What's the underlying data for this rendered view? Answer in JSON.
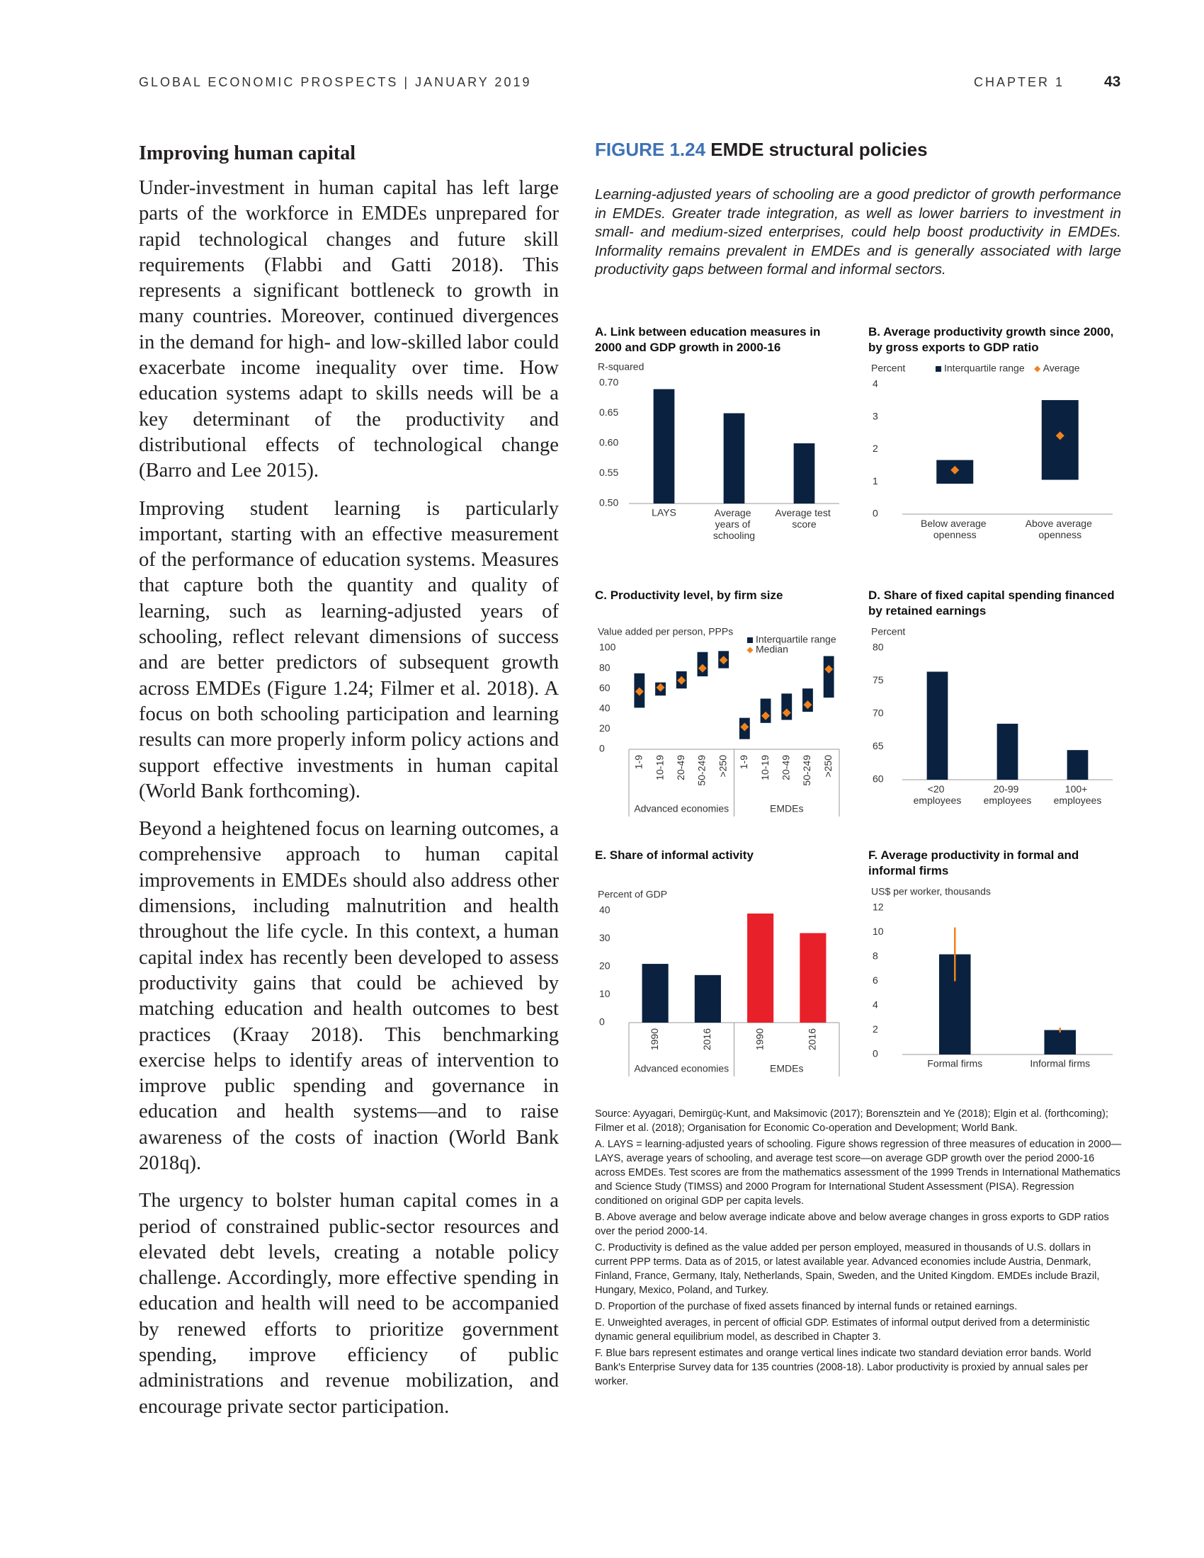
{
  "header": {
    "left": "GLOBAL ECONOMIC PROSPECTS | JANUARY 2019",
    "chapter": "CHAPTER 1",
    "page": "43"
  },
  "body": {
    "heading": "Improving human capital",
    "paragraphs": [
      "Under-investment in human capital has left large parts of the workforce in EMDEs unprepared for rapid technological changes and future skill requirements (Flabbi and Gatti 2018). This represents a significant bottleneck to growth in many countries. Moreover, continued divergences in the demand for high- and low-skilled labor could exacerbate income inequality over time. How education systems adapt to skills needs will be a key determinant of the productivity and distributional effects of technological change (Barro and Lee 2015).",
      "Improving student learning is particularly important, starting with an effective measurement of the performance of education systems. Measures that capture both the quantity and quality of learning, such as learning-adjusted years of schooling, reflect relevant dimensions of success and are better predictors of subsequent growth across EMDEs (Figure 1.24; Filmer et al. 2018). A focus on both schooling participation and learning results can more properly inform policy actions and support effective investments in human capital (World Bank forthcoming).",
      "Beyond a heightened focus on learning outcomes, a comprehensive approach to human capital improvements in EMDEs should also address other dimensions, including malnutrition and health throughout the life cycle. In this context, a human capital index has recently been developed to assess productivity gains that could be achieved by matching education and health outcomes to best practices (Kraay 2018). This benchmarking exercise helps to identify areas of intervention to improve public spending and governance in education and health systems—and to raise awareness of the costs of inaction (World Bank 2018q).",
      "The urgency to bolster human capital comes in a period of constrained public-sector resources and elevated debt levels, creating a notable policy challenge. Accordingly, more effective spending in education and health will need to be accompanied by renewed efforts to prioritize government spending, improve efficiency of public administrations and revenue mobilization, and encourage private sector participation."
    ]
  },
  "figure": {
    "label": "FIGURE 1.24",
    "title": "EMDE structural policies",
    "subtitle": "Learning-adjusted years of schooling are a good predictor of growth performance in EMDEs. Greater trade integration, as well as lower barriers to investment in small- and medium-sized enterprises, could help boost productivity in EMDEs. Informality remains prevalent in EMDEs and is generally associated with large productivity gaps between formal and informal sectors."
  },
  "chart_data": [
    {
      "type": "bar",
      "title": "A. Link between education measures in 2000 and GDP growth in 2000-16",
      "y_label": "R-squared",
      "categories": [
        "LAYS",
        "Average years of schooling",
        "Average test score"
      ],
      "values": [
        0.69,
        0.65,
        0.6
      ],
      "color": "#0a2240",
      "ylim": [
        0.5,
        0.7
      ],
      "yticks": [
        {
          "value": 0.5,
          "label": "0.50"
        },
        {
          "value": 0.55,
          "label": "0.55"
        },
        {
          "value": 0.6,
          "label": "0.60"
        },
        {
          "value": 0.65,
          "label": "0.65"
        },
        {
          "value": 0.7,
          "label": "0.70"
        }
      ]
    },
    {
      "type": "range",
      "title": "B. Average productivity growth since 2000, by gross exports to GDP ratio",
      "y_label": "Percent",
      "categories": [
        "Below average openness",
        "Above average openness"
      ],
      "series": [
        {
          "name": "Interquartile range",
          "color": "#0a2240",
          "low": [
            0.94,
            1.06
          ],
          "high": [
            1.67,
            3.52
          ]
        },
        {
          "name": "Average",
          "color": "#f0821e",
          "values": [
            1.36,
            2.42
          ]
        }
      ],
      "ylim": [
        0,
        4
      ],
      "yticks": [
        0,
        1,
        2,
        3,
        4
      ],
      "legend": "top-right"
    },
    {
      "type": "range",
      "title": "C. Productivity level, by firm size",
      "y_label": "Value added per person, PPPs",
      "categories": [
        "1-9",
        "10-19",
        "20-49",
        "50-249",
        ">250",
        "1-9",
        "10-19",
        "20-49",
        "50-249",
        ">250"
      ],
      "groups": [
        "Advanced economies",
        "EMDEs"
      ],
      "series": [
        {
          "name": "Interquartile range",
          "color": "#0a2240",
          "low": [
            41,
            53,
            60,
            72,
            80,
            10,
            26,
            29,
            37,
            51
          ],
          "high": [
            75,
            66,
            77,
            96,
            97,
            31,
            50,
            55,
            60,
            92
          ]
        },
        {
          "name": "Median",
          "color": "#f0821e",
          "values": [
            57,
            61,
            68,
            80,
            88,
            22,
            33,
            36,
            44,
            79
          ]
        }
      ],
      "ylim": [
        0,
        100
      ],
      "yticks": [
        0,
        20,
        40,
        60,
        80,
        100
      ],
      "legend": "top-right"
    },
    {
      "type": "bar",
      "title": "D. Share of fixed capital spending financed by retained earnings",
      "y_label": "Percent",
      "categories": [
        "<20 employees",
        "20-99 employees",
        "100+ employees"
      ],
      "values": [
        76.4,
        68.5,
        64.5
      ],
      "color": "#0a2240",
      "ylim": [
        60,
        80
      ],
      "yticks": [
        60,
        65,
        70,
        75,
        80
      ]
    },
    {
      "type": "bar",
      "title": "E. Share of informal activity",
      "y_label": "Percent of GDP",
      "categories": [
        "1990",
        "2016",
        "1990",
        "2016"
      ],
      "groups": [
        "Advanced economies",
        "EMDEs"
      ],
      "values": [
        21,
        17,
        39,
        32
      ],
      "colors": [
        "#0a2240",
        "#0a2240",
        "#e8202a",
        "#e8202a"
      ],
      "ylim": [
        0,
        40
      ],
      "yticks": [
        0,
        10,
        20,
        30,
        40
      ]
    },
    {
      "type": "bar",
      "title": "F. Average productivity in formal and informal firms",
      "y_label": "US$ per worker, thousands",
      "categories": [
        "Formal firms",
        "Informal firms"
      ],
      "values": [
        8.2,
        2.0
      ],
      "color": "#0a2240",
      "error_low": [
        6.0,
        1.8
      ],
      "error_high": [
        10.4,
        2.2
      ],
      "error_color": "#f0821e",
      "ylim": [
        0,
        12
      ],
      "yticks": [
        0,
        2,
        4,
        6,
        8,
        10,
        12
      ]
    }
  ],
  "notes": [
    "Source: Ayyagari, Demirgüç-Kunt, and Maksimovic (2017); Borensztein and Ye (2018); Elgin et al. (forthcoming); Filmer et al. (2018); Organisation for Economic Co-operation and Development; World Bank.",
    "A. LAYS = learning-adjusted years of schooling. Figure shows regression of three measures of education in 2000—LAYS, average years of schooling, and average test score—on average GDP growth over the period 2000-16 across EMDEs. Test scores are from the mathematics assessment of the 1999 Trends in International Mathematics and Science Study (TIMSS) and 2000 Program for International Student Assessment (PISA). Regression conditioned on original GDP per capita levels.",
    "B. Above average and below average indicate above and below average changes in gross exports to GDP ratios over the period 2000-14.",
    "C. Productivity is defined as the value added per person employed, measured in thousands of U.S. dollars in current PPP terms. Data as of 2015, or latest available year. Advanced economies include Austria, Denmark, Finland, France, Germany, Italy, Netherlands, Spain, Sweden, and the United Kingdom. EMDEs include Brazil, Hungary, Mexico, Poland, and Turkey.",
    "D. Proportion of the purchase of fixed assets financed by internal funds or retained earnings.",
    "E. Unweighted averages, in percent of official GDP. Estimates of informal output derived from a deterministic dynamic general equilibrium model, as described in Chapter 3.",
    "F. Blue bars represent estimates and orange vertical lines indicate two standard deviation error bands. World Bank's Enterprise Survey data for 135 countries (2008-18). Labor productivity is proxied by annual sales per worker."
  ]
}
